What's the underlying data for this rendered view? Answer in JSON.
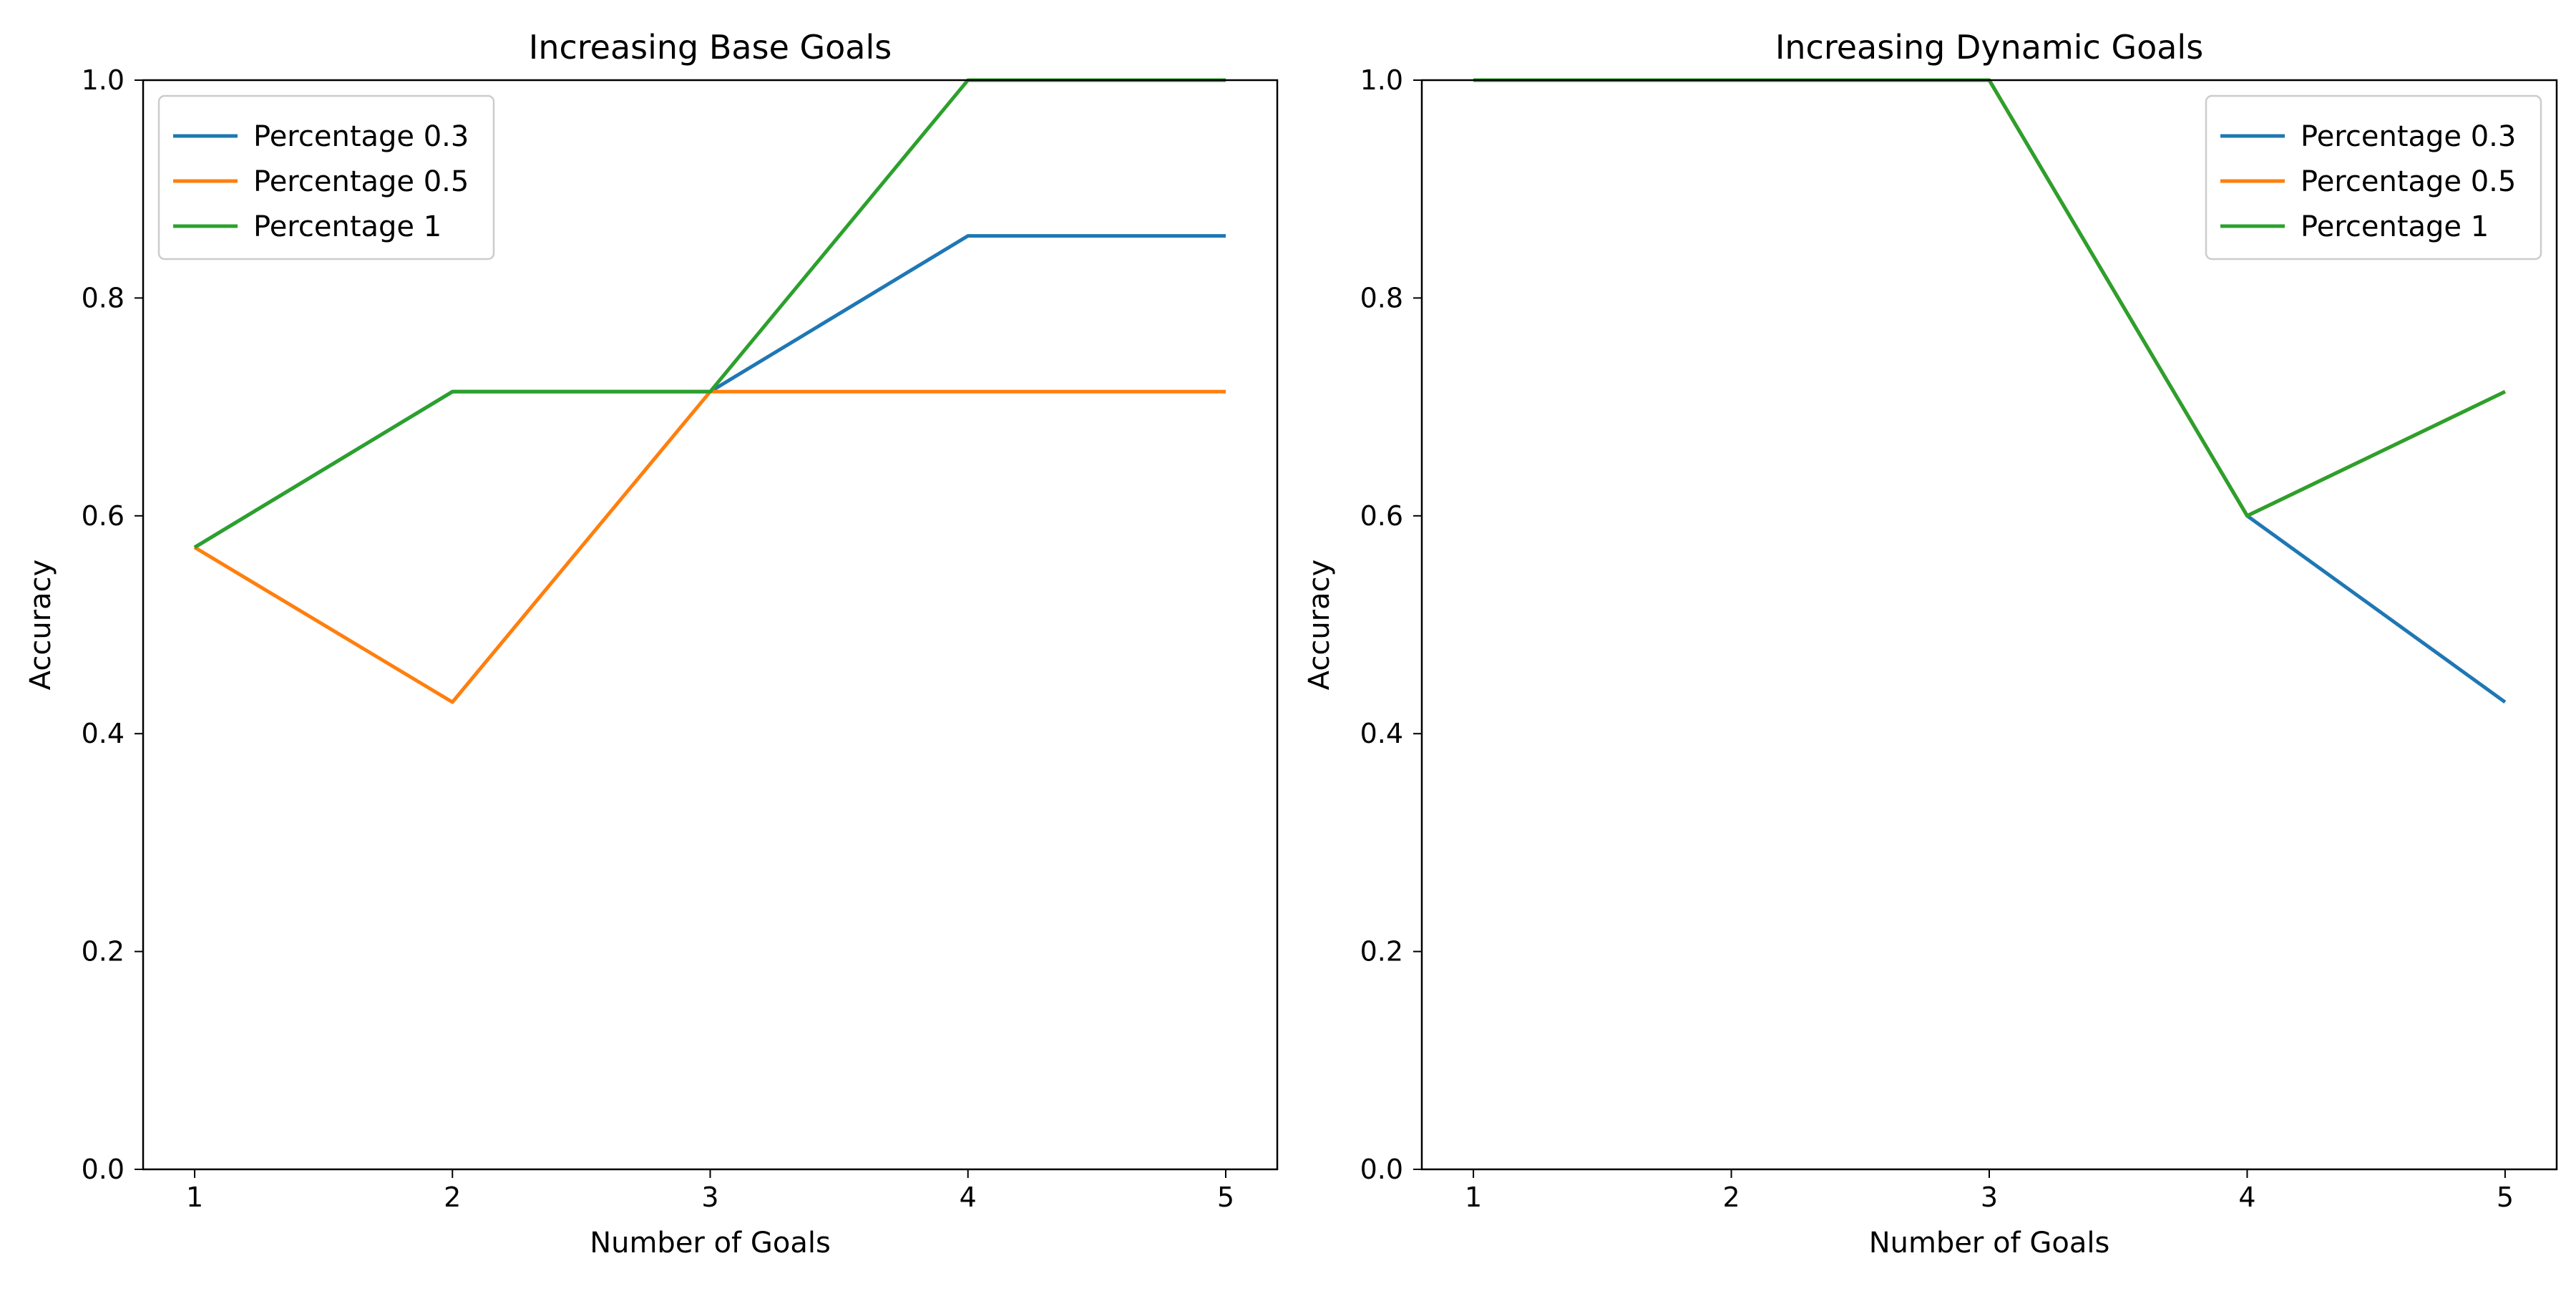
{
  "figure": {
    "background": "#ffffff"
  },
  "colors": {
    "blue": "#1f77b4",
    "orange": "#ff7f0e",
    "green": "#2ca02c",
    "axis": "#000000",
    "legend_border": "#cccccc"
  },
  "chart_data": [
    {
      "type": "line",
      "title": "Increasing Base Goals",
      "xlabel": "Number of Goals",
      "ylabel": "Accuracy",
      "x": [
        1,
        2,
        3,
        4,
        5
      ],
      "xticks": [
        "1",
        "2",
        "3",
        "4",
        "5"
      ],
      "xlim": [
        0.8,
        5.2
      ],
      "ylim": [
        0.0,
        1.0
      ],
      "yticks": [
        "0.0",
        "0.2",
        "0.4",
        "0.6",
        "0.8",
        "1.0"
      ],
      "grid": false,
      "legend_position": "upper-left",
      "series": [
        {
          "name": "Percentage 0.3",
          "color": "#1f77b4",
          "values": [
            0.571,
            0.714,
            0.714,
            0.857,
            0.857
          ]
        },
        {
          "name": "Percentage 0.5",
          "color": "#ff7f0e",
          "values": [
            0.571,
            0.429,
            0.714,
            0.714,
            0.714
          ]
        },
        {
          "name": "Percentage 1",
          "color": "#2ca02c",
          "values": [
            0.571,
            0.714,
            0.714,
            1.0,
            1.0
          ]
        }
      ]
    },
    {
      "type": "line",
      "title": "Increasing Dynamic Goals",
      "xlabel": "Number of Goals",
      "ylabel": "Accuracy",
      "x": [
        1,
        2,
        3,
        4,
        5
      ],
      "xticks": [
        "1",
        "2",
        "3",
        "4",
        "5"
      ],
      "xlim": [
        0.8,
        5.2
      ],
      "ylim": [
        0.0,
        1.0
      ],
      "yticks": [
        "0.0",
        "0.2",
        "0.4",
        "0.6",
        "0.8",
        "1.0"
      ],
      "grid": false,
      "legend_position": "upper-right",
      "series": [
        {
          "name": "Percentage 0.3",
          "color": "#1f77b4",
          "values": [
            1.0,
            1.0,
            1.0,
            0.6,
            0.429
          ]
        },
        {
          "name": "Percentage 0.5",
          "color": "#ff7f0e",
          "values": [
            1.0,
            1.0,
            1.0,
            0.6,
            0.714
          ]
        },
        {
          "name": "Percentage 1",
          "color": "#2ca02c",
          "values": [
            1.0,
            1.0,
            1.0,
            0.6,
            0.714
          ]
        }
      ]
    }
  ]
}
